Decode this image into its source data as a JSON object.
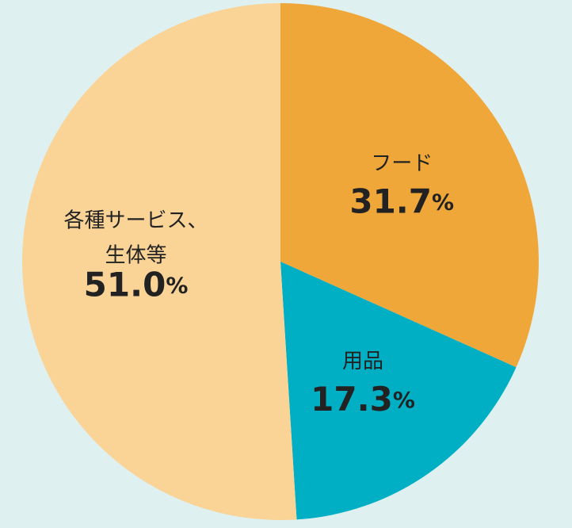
{
  "chart_data": {
    "type": "pie",
    "categories": [
      "フード",
      "用品",
      "各種サービス、\n生体等"
    ],
    "values": [
      31.7,
      17.3,
      51.0
    ],
    "value_labels": [
      "31.7%",
      "17.3%",
      "51.0%"
    ],
    "colors": [
      "#f0a73a",
      "#00afc4",
      "#fad397"
    ]
  }
}
